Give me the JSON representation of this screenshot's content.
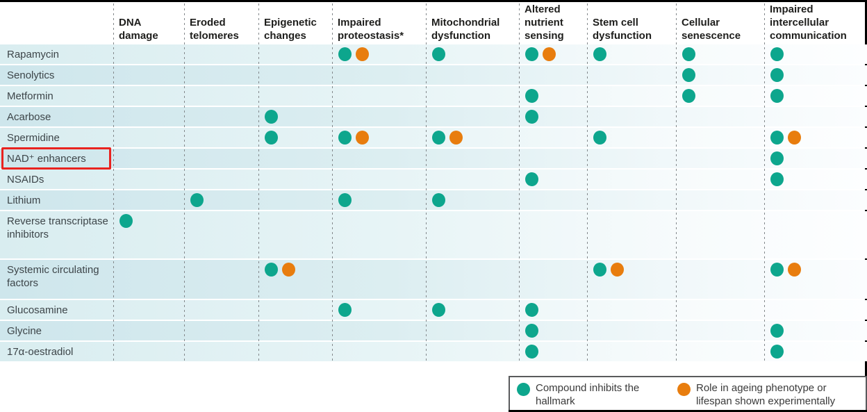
{
  "colors": {
    "inhibits_dot": "#0da68d",
    "experimental_dot": "#e87d0e",
    "highlight_box": "#e9231f",
    "row_tint_left": "#d5eaee",
    "divider": "#83888b"
  },
  "chart_data": {
    "type": "table",
    "title": "",
    "columns": [
      "DNA damage",
      "Eroded telomeres",
      "Epigenetic changes",
      "Impaired proteostasis*",
      "Mitochondrial dysfunction",
      "Altered nutrient sensing",
      "Stem cell dysfunction",
      "Cellular senescence",
      "Impaired intercellular communication"
    ],
    "column_ids": [
      "dna-damage",
      "eroded-telomeres",
      "epigenetic-changes",
      "impaired-proteostasis",
      "mitochondrial-dysfunction",
      "altered-nutrient-sensing",
      "stem-cell-dysfunction",
      "cellular-senescence",
      "impaired-intercellular-communication"
    ],
    "cell_codes": {
      "T": "teal dot — compound inhibits the hallmark",
      "TO": "teal dot + orange dot — inhibits hallmark and role in ageing phenotype or lifespan shown experimentally",
      "": "no marker"
    },
    "rows": [
      {
        "label": "Rapamycin",
        "highlighted": false,
        "cells": [
          "",
          "",
          "",
          "TO",
          "T",
          "TO",
          "T",
          "T",
          "T"
        ]
      },
      {
        "label": "Senolytics",
        "highlighted": false,
        "cells": [
          "",
          "",
          "",
          "",
          "",
          "",
          "",
          "T",
          "T"
        ]
      },
      {
        "label": "Metformin",
        "highlighted": false,
        "cells": [
          "",
          "",
          "",
          "",
          "",
          "T",
          "",
          "T",
          "T"
        ]
      },
      {
        "label": "Acarbose",
        "highlighted": false,
        "cells": [
          "",
          "",
          "T",
          "",
          "",
          "T",
          "",
          "",
          ""
        ]
      },
      {
        "label": "Spermidine",
        "highlighted": false,
        "cells": [
          "",
          "",
          "T",
          "TO",
          "TO",
          "",
          "T",
          "",
          "TO"
        ]
      },
      {
        "label": "NAD⁺ enhancers",
        "highlighted": true,
        "cells": [
          "",
          "",
          "",
          "",
          "",
          "",
          "",
          "",
          "T"
        ]
      },
      {
        "label": "NSAIDs",
        "highlighted": false,
        "cells": [
          "",
          "",
          "",
          "",
          "",
          "T",
          "",
          "",
          "T"
        ]
      },
      {
        "label": "Lithium",
        "highlighted": false,
        "cells": [
          "",
          "T",
          "",
          "T",
          "T",
          "",
          "",
          "",
          ""
        ]
      },
      {
        "label": "Reverse transcriptase inhibitors",
        "highlighted": false,
        "cells": [
          "T",
          "",
          "",
          "",
          "",
          "",
          "",
          "",
          ""
        ]
      },
      {
        "label": "Systemic circulating factors",
        "highlighted": false,
        "cells": [
          "",
          "",
          "TO",
          "",
          "",
          "",
          "TO",
          "",
          "TO"
        ]
      },
      {
        "label": "Glucosamine",
        "highlighted": false,
        "cells": [
          "",
          "",
          "",
          "T",
          "T",
          "T",
          "",
          "",
          ""
        ]
      },
      {
        "label": "Glycine",
        "highlighted": false,
        "cells": [
          "",
          "",
          "",
          "",
          "",
          "T",
          "",
          "",
          "T"
        ]
      },
      {
        "label": "17α-oestradiol",
        "highlighted": false,
        "cells": [
          "",
          "",
          "",
          "",
          "",
          "T",
          "",
          "",
          "T"
        ]
      }
    ],
    "legend_position": "bottom-right",
    "grid": "dashed vertical column dividers"
  },
  "legend": {
    "items": [
      {
        "color": "#0da68d",
        "label": "Compound inhibits the hallmark"
      },
      {
        "color": "#e87d0e",
        "label": "Role in ageing phenotype or lifespan shown experimentally"
      }
    ]
  }
}
